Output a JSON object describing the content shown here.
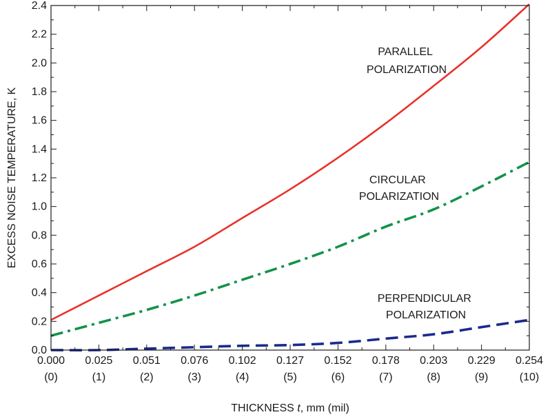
{
  "chart_data": {
    "type": "line",
    "title": "",
    "xlabel": {
      "prefix": "THICKNESS ",
      "var": "t",
      "suffix": ", mm (mil)"
    },
    "ylabel": "EXCESS NOISE TEMPERATURE, K",
    "xlim": [
      0,
      0.254
    ],
    "ylim": [
      0,
      2.4
    ],
    "grid": false,
    "x_ticks": [
      {
        "value": 0.0,
        "label": "0.000",
        "sublabel": "(0)"
      },
      {
        "value": 0.0254,
        "label": "0.025",
        "sublabel": "(1)"
      },
      {
        "value": 0.0508,
        "label": "0.051",
        "sublabel": "(2)"
      },
      {
        "value": 0.0762,
        "label": "0.076",
        "sublabel": "(3)"
      },
      {
        "value": 0.1016,
        "label": "0.102",
        "sublabel": "(4)"
      },
      {
        "value": 0.127,
        "label": "0.127",
        "sublabel": "(5)"
      },
      {
        "value": 0.1524,
        "label": "0.152",
        "sublabel": "(6)"
      },
      {
        "value": 0.1778,
        "label": "0.178",
        "sublabel": "(7)"
      },
      {
        "value": 0.2032,
        "label": "0.203",
        "sublabel": "(8)"
      },
      {
        "value": 0.2286,
        "label": "0.229",
        "sublabel": "(9)"
      },
      {
        "value": 0.254,
        "label": "0.254",
        "sublabel": "(10)"
      }
    ],
    "y_ticks": [
      {
        "value": 0.0,
        "label": "0.0"
      },
      {
        "value": 0.2,
        "label": "0.2"
      },
      {
        "value": 0.4,
        "label": "0.4"
      },
      {
        "value": 0.6,
        "label": "0.6"
      },
      {
        "value": 0.8,
        "label": "0.8"
      },
      {
        "value": 1.0,
        "label": "1.0"
      },
      {
        "value": 1.2,
        "label": "1.2"
      },
      {
        "value": 1.4,
        "label": "1.4"
      },
      {
        "value": 1.6,
        "label": "1.6"
      },
      {
        "value": 1.8,
        "label": "1.8"
      },
      {
        "value": 2.0,
        "label": "2.0"
      },
      {
        "value": 2.2,
        "label": "2.2"
      },
      {
        "value": 2.4,
        "label": "2.4"
      }
    ],
    "series": [
      {
        "name": "PARALLEL POLARIZATION",
        "color": "#e8312a",
        "style": "solid",
        "x": [
          0.0,
          0.0254,
          0.0508,
          0.0762,
          0.1016,
          0.127,
          0.1524,
          0.1778,
          0.2032,
          0.2286,
          0.254
        ],
        "y": [
          0.21,
          0.38,
          0.55,
          0.72,
          0.92,
          1.12,
          1.34,
          1.58,
          1.84,
          2.11,
          2.41
        ]
      },
      {
        "name": "CIRCULAR POLARIZATION",
        "color": "#13924a",
        "style": "dash-dot",
        "x": [
          0.0,
          0.0254,
          0.0508,
          0.0762,
          0.1016,
          0.127,
          0.1524,
          0.1778,
          0.2032,
          0.2286,
          0.254
        ],
        "y": [
          0.1,
          0.19,
          0.28,
          0.38,
          0.49,
          0.6,
          0.72,
          0.86,
          0.98,
          1.14,
          1.31
        ]
      },
      {
        "name": "PERPENDICULAR POLARIZATION",
        "color": "#1c2a8c",
        "style": "dashed",
        "x": [
          0.0,
          0.0254,
          0.0508,
          0.0762,
          0.1016,
          0.127,
          0.1524,
          0.1778,
          0.2032,
          0.2286,
          0.254
        ],
        "y": [
          0.0,
          0.0,
          0.01,
          0.02,
          0.03,
          0.035,
          0.05,
          0.08,
          0.11,
          0.16,
          0.21
        ]
      }
    ],
    "annotations": [
      {
        "series": "PARALLEL POLARIZATION",
        "lines": [
          "PARALLEL",
          "POLARIZATION"
        ]
      },
      {
        "series": "CIRCULAR POLARIZATION",
        "lines": [
          "CIRCULAR",
          "POLARIZATION"
        ]
      },
      {
        "series": "PERPENDICULAR POLARIZATION",
        "lines": [
          "PERPENDICULAR",
          "POLARIZATION"
        ]
      }
    ]
  }
}
